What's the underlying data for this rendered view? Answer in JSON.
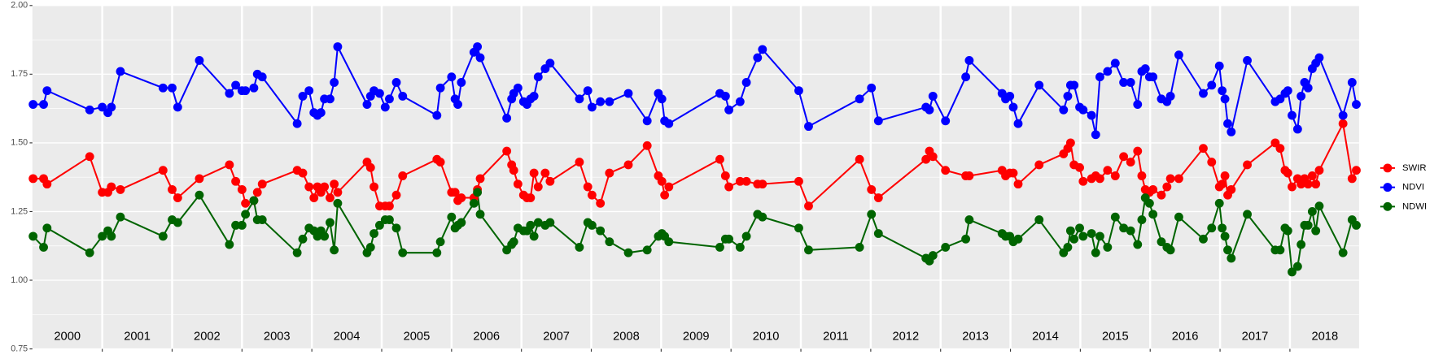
{
  "chart_data": {
    "type": "line",
    "x": [
      2000.01,
      2000.16,
      2000.21,
      2000.82,
      2001.0,
      2001.08,
      2001.13,
      2001.26,
      2001.87,
      2002.0,
      2002.08,
      2002.39,
      2002.82,
      2002.91,
      2003.0,
      2003.05,
      2003.17,
      2003.22,
      2003.29,
      2003.79,
      2003.87,
      2003.96,
      2004.03,
      2004.08,
      2004.13,
      2004.18,
      2004.26,
      2004.32,
      2004.37,
      2004.79,
      2004.84,
      2004.89,
      2004.97,
      2005.05,
      2005.11,
      2005.21,
      2005.3,
      2005.79,
      2005.84,
      2006.0,
      2006.05,
      2006.09,
      2006.14,
      2006.32,
      2006.37,
      2006.41,
      2006.79,
      2006.86,
      2006.89,
      2006.95,
      2007.03,
      2007.08,
      2007.13,
      2007.18,
      2007.24,
      2007.34,
      2007.41,
      2007.83,
      2007.95,
      2008.01,
      2008.13,
      2008.26,
      2008.53,
      2008.8,
      2008.96,
      2009.01,
      2009.05,
      2009.11,
      2009.84,
      2009.92,
      2009.97,
      2010.13,
      2010.22,
      2010.38,
      2010.45,
      2010.97,
      2011.11,
      2011.84,
      2012.01,
      2012.11,
      2012.79,
      2012.84,
      2012.89,
      2013.07,
      2013.36,
      2013.41,
      2013.88,
      2013.93,
      2013.99,
      2014.04,
      2014.11,
      2014.41,
      2014.76,
      2014.82,
      2014.86,
      2014.91,
      2014.99,
      2015.04,
      2015.16,
      2015.22,
      2015.28,
      2015.39,
      2015.5,
      2015.62,
      2015.72,
      2015.82,
      2015.88,
      2015.93,
      2015.99,
      2016.04,
      2016.16,
      2016.24,
      2016.29,
      2016.41,
      2016.76,
      2016.88,
      2016.99,
      2017.03,
      2017.07,
      2017.11,
      2017.16,
      2017.39,
      2017.79,
      2017.86,
      2017.93,
      2017.97,
      2018.03,
      2018.11,
      2018.16,
      2018.21,
      2018.26,
      2018.32,
      2018.37,
      2018.42,
      2018.76,
      2018.89,
      2018.95
    ],
    "series": [
      {
        "name": "SWIR",
        "color": "#ff0000",
        "values": [
          1.37,
          1.37,
          1.35,
          1.45,
          1.32,
          1.32,
          1.34,
          1.33,
          1.4,
          1.33,
          1.3,
          1.37,
          1.42,
          1.36,
          1.33,
          1.28,
          1.29,
          1.32,
          1.35,
          1.4,
          1.39,
          1.34,
          1.3,
          1.34,
          1.32,
          1.34,
          1.3,
          1.35,
          1.32,
          1.43,
          1.41,
          1.34,
          1.27,
          1.27,
          1.27,
          1.31,
          1.38,
          1.44,
          1.43,
          1.32,
          1.32,
          1.29,
          1.3,
          1.3,
          1.33,
          1.37,
          1.47,
          1.42,
          1.4,
          1.35,
          1.31,
          1.3,
          1.3,
          1.39,
          1.34,
          1.39,
          1.36,
          1.43,
          1.34,
          1.31,
          1.28,
          1.39,
          1.42,
          1.49,
          1.38,
          1.36,
          1.31,
          1.34,
          1.44,
          1.38,
          1.34,
          1.36,
          1.36,
          1.35,
          1.35,
          1.36,
          1.27,
          1.44,
          1.33,
          1.3,
          1.44,
          1.47,
          1.45,
          1.4,
          1.38,
          1.38,
          1.4,
          1.38,
          1.39,
          1.39,
          1.35,
          1.42,
          1.46,
          1.48,
          1.5,
          1.42,
          1.41,
          1.36,
          1.37,
          1.38,
          1.37,
          1.4,
          1.38,
          1.45,
          1.43,
          1.47,
          1.38,
          1.33,
          1.32,
          1.33,
          1.31,
          1.34,
          1.37,
          1.37,
          1.48,
          1.43,
          1.34,
          1.35,
          1.38,
          1.31,
          1.33,
          1.42,
          1.5,
          1.48,
          1.4,
          1.39,
          1.34,
          1.37,
          1.35,
          1.37,
          1.35,
          1.38,
          1.35,
          1.4,
          1.57,
          1.37,
          1.4
        ]
      },
      {
        "name": "NDVI",
        "color": "#0000ff",
        "values": [
          1.64,
          1.64,
          1.69,
          1.62,
          1.63,
          1.61,
          1.63,
          1.76,
          1.7,
          1.7,
          1.63,
          1.8,
          1.68,
          1.71,
          1.69,
          1.69,
          1.7,
          1.75,
          1.74,
          1.57,
          1.67,
          1.69,
          1.61,
          1.6,
          1.61,
          1.66,
          1.66,
          1.72,
          1.85,
          1.64,
          1.67,
          1.69,
          1.68,
          1.63,
          1.66,
          1.72,
          1.67,
          1.6,
          1.7,
          1.74,
          1.66,
          1.64,
          1.72,
          1.83,
          1.85,
          1.81,
          1.59,
          1.66,
          1.68,
          1.7,
          1.65,
          1.64,
          1.66,
          1.67,
          1.74,
          1.77,
          1.79,
          1.66,
          1.69,
          1.63,
          1.65,
          1.65,
          1.68,
          1.58,
          1.68,
          1.66,
          1.58,
          1.57,
          1.68,
          1.67,
          1.62,
          1.65,
          1.72,
          1.81,
          1.84,
          1.69,
          1.56,
          1.66,
          1.7,
          1.58,
          1.63,
          1.62,
          1.67,
          1.58,
          1.74,
          1.8,
          1.68,
          1.66,
          1.67,
          1.63,
          1.57,
          1.71,
          1.62,
          1.67,
          1.71,
          1.71,
          1.63,
          1.62,
          1.6,
          1.53,
          1.74,
          1.76,
          1.79,
          1.72,
          1.72,
          1.64,
          1.76,
          1.77,
          1.74,
          1.74,
          1.66,
          1.65,
          1.67,
          1.82,
          1.68,
          1.71,
          1.78,
          1.69,
          1.66,
          1.57,
          1.54,
          1.8,
          1.65,
          1.66,
          1.68,
          1.69,
          1.6,
          1.55,
          1.67,
          1.72,
          1.7,
          1.77,
          1.79,
          1.81,
          1.6,
          1.72,
          1.64
        ]
      },
      {
        "name": "NDWI",
        "color": "#006400",
        "values": [
          1.16,
          1.12,
          1.19,
          1.1,
          1.16,
          1.18,
          1.16,
          1.23,
          1.16,
          1.22,
          1.21,
          1.31,
          1.13,
          1.2,
          1.2,
          1.24,
          1.29,
          1.22,
          1.22,
          1.1,
          1.15,
          1.19,
          1.18,
          1.16,
          1.18,
          1.16,
          1.21,
          1.11,
          1.28,
          1.1,
          1.12,
          1.17,
          1.2,
          1.22,
          1.22,
          1.19,
          1.1,
          1.1,
          1.14,
          1.23,
          1.19,
          1.2,
          1.21,
          1.28,
          1.32,
          1.24,
          1.11,
          1.13,
          1.14,
          1.19,
          1.18,
          1.18,
          1.2,
          1.16,
          1.21,
          1.2,
          1.21,
          1.12,
          1.21,
          1.2,
          1.18,
          1.14,
          1.1,
          1.11,
          1.16,
          1.17,
          1.16,
          1.14,
          1.12,
          1.15,
          1.15,
          1.12,
          1.16,
          1.24,
          1.23,
          1.19,
          1.11,
          1.12,
          1.24,
          1.17,
          1.08,
          1.07,
          1.09,
          1.12,
          1.15,
          1.22,
          1.17,
          1.16,
          1.16,
          1.14,
          1.15,
          1.22,
          1.1,
          1.12,
          1.18,
          1.15,
          1.19,
          1.16,
          1.17,
          1.1,
          1.16,
          1.12,
          1.23,
          1.19,
          1.18,
          1.13,
          1.22,
          1.3,
          1.28,
          1.24,
          1.14,
          1.12,
          1.11,
          1.23,
          1.15,
          1.19,
          1.28,
          1.19,
          1.16,
          1.11,
          1.08,
          1.24,
          1.11,
          1.11,
          1.19,
          1.18,
          1.03,
          1.05,
          1.13,
          1.2,
          1.2,
          1.25,
          1.18,
          1.27,
          1.1,
          1.22,
          1.2
        ]
      }
    ],
    "xlim": [
      2000,
      2018.99
    ],
    "xticks": [
      2001,
      2002,
      2003,
      2004,
      2005,
      2006,
      2007,
      2008,
      2009,
      2010,
      2011,
      2012,
      2013,
      2014,
      2015,
      2016,
      2017,
      2018
    ],
    "year_labels": [
      {
        "value": 2000.5,
        "label": "2000"
      },
      {
        "value": 2001.5,
        "label": "2001"
      },
      {
        "value": 2002.5,
        "label": "2002"
      },
      {
        "value": 2003.5,
        "label": "2003"
      },
      {
        "value": 2004.5,
        "label": "2004"
      },
      {
        "value": 2005.5,
        "label": "2005"
      },
      {
        "value": 2006.5,
        "label": "2006"
      },
      {
        "value": 2007.5,
        "label": "2007"
      },
      {
        "value": 2008.5,
        "label": "2008"
      },
      {
        "value": 2009.5,
        "label": "2009"
      },
      {
        "value": 2010.5,
        "label": "2010"
      },
      {
        "value": 2011.5,
        "label": "2011"
      },
      {
        "value": 2012.5,
        "label": "2012"
      },
      {
        "value": 2013.5,
        "label": "2013"
      },
      {
        "value": 2014.5,
        "label": "2014"
      },
      {
        "value": 2015.5,
        "label": "2015"
      },
      {
        "value": 2016.5,
        "label": "2016"
      },
      {
        "value": 2017.5,
        "label": "2017"
      },
      {
        "value": 2018.5,
        "label": "2018"
      }
    ],
    "ylim": [
      0.75,
      2.0
    ],
    "yticks": [
      {
        "value": 0.75,
        "label": "0.75"
      },
      {
        "value": 1.0,
        "label": "1.00"
      },
      {
        "value": 1.25,
        "label": "1.25"
      },
      {
        "value": 1.5,
        "label": "1.50"
      },
      {
        "value": 1.75,
        "label": "1.75"
      },
      {
        "value": 2.0,
        "label": "2.00"
      }
    ],
    "grid": true,
    "legend": "right"
  }
}
